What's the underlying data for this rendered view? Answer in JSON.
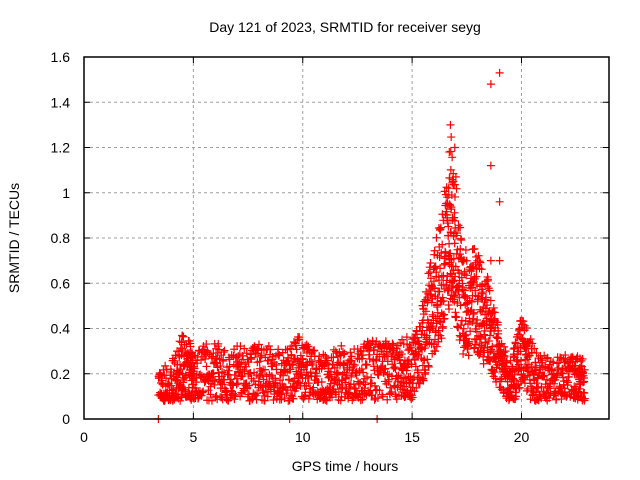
{
  "chart_data": {
    "type": "scatter",
    "title": "Day 121 of 2023, SRMTID for receiver seyg",
    "xlabel": "GPS time / hours",
    "ylabel": "SRMTID / TECUs",
    "xlim": [
      0,
      24
    ],
    "ylim": [
      0,
      1.6
    ],
    "xticks": [
      0,
      5,
      10,
      15,
      20
    ],
    "xtick_labels": [
      "0",
      "5",
      "10",
      "15",
      "20"
    ],
    "yticks": [
      0,
      0.2,
      0.4,
      0.6,
      0.8,
      1.0,
      1.2,
      1.4,
      1.6
    ],
    "ytick_labels": [
      "0",
      "0.2",
      "0.4",
      "0.6",
      "0.8",
      "1",
      "1.2",
      "1.4",
      "1.6"
    ],
    "grid": true,
    "marker": "plus",
    "series_color": "#ff0000",
    "legend": "none",
    "series": [
      {
        "name": "SRMTID",
        "profile": [
          [
            3.4,
            0.14
          ],
          [
            3.8,
            0.13
          ],
          [
            4.2,
            0.17
          ],
          [
            4.5,
            0.24
          ],
          [
            4.8,
            0.22
          ],
          [
            5.0,
            0.17
          ],
          [
            5.5,
            0.2
          ],
          [
            6.0,
            0.21
          ],
          [
            6.5,
            0.18
          ],
          [
            7.0,
            0.2
          ],
          [
            7.5,
            0.19
          ],
          [
            8.0,
            0.2
          ],
          [
            8.5,
            0.2
          ],
          [
            9.0,
            0.18
          ],
          [
            9.5,
            0.2
          ],
          [
            9.9,
            0.25
          ],
          [
            10.3,
            0.19
          ],
          [
            10.8,
            0.17
          ],
          [
            11.2,
            0.17
          ],
          [
            11.7,
            0.2
          ],
          [
            12.2,
            0.18
          ],
          [
            12.7,
            0.2
          ],
          [
            13.2,
            0.22
          ],
          [
            13.7,
            0.22
          ],
          [
            14.2,
            0.2
          ],
          [
            14.6,
            0.24
          ],
          [
            15.0,
            0.22
          ],
          [
            15.4,
            0.3
          ],
          [
            15.7,
            0.42
          ],
          [
            16.0,
            0.52
          ],
          [
            16.3,
            0.62
          ],
          [
            16.6,
            0.75
          ],
          [
            16.8,
            0.9
          ],
          [
            17.0,
            0.75
          ],
          [
            17.3,
            0.52
          ],
          [
            17.6,
            0.5
          ],
          [
            17.9,
            0.55
          ],
          [
            18.2,
            0.48
          ],
          [
            18.5,
            0.42
          ],
          [
            18.8,
            0.3
          ],
          [
            19.1,
            0.22
          ],
          [
            19.4,
            0.15
          ],
          [
            19.7,
            0.2
          ],
          [
            20.0,
            0.32
          ],
          [
            20.3,
            0.24
          ],
          [
            20.7,
            0.17
          ],
          [
            21.2,
            0.16
          ],
          [
            21.7,
            0.16
          ],
          [
            22.2,
            0.17
          ],
          [
            22.6,
            0.16
          ],
          [
            22.9,
            0.15
          ]
        ],
        "outliers": [
          [
            18.6,
            1.48
          ],
          [
            19.0,
            1.53
          ],
          [
            16.75,
            1.3
          ],
          [
            16.95,
            1.2
          ],
          [
            16.7,
            1.18
          ],
          [
            18.6,
            1.12
          ],
          [
            19.0,
            0.96
          ],
          [
            18.6,
            0.7
          ],
          [
            19.0,
            0.7
          ],
          [
            13.4,
            0.0
          ],
          [
            3.4,
            0.0
          ],
          [
            9.4,
            0.0
          ]
        ]
      }
    ]
  }
}
